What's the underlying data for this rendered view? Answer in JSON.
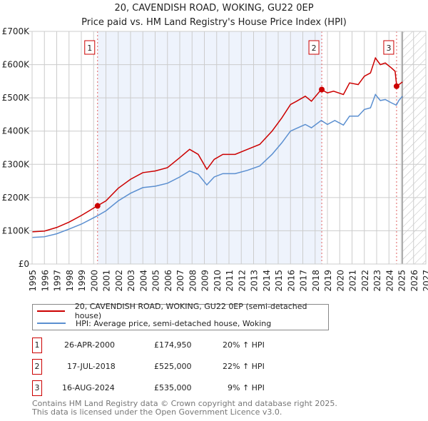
{
  "title": "20, CAVENDISH ROAD, WOKING, GU22 0EP",
  "subtitle": "Price paid vs. HM Land Registry's House Price Index (HPI)",
  "colors": {
    "property": "#cc0000",
    "hpi": "#5b8fd0",
    "shade": "#eef3fc"
  },
  "chart_data": {
    "type": "line",
    "xlim": [
      1995,
      2027
    ],
    "ylim": [
      0,
      700000
    ],
    "yticks": [
      {
        "v": 0,
        "label": "£0"
      },
      {
        "v": 100000,
        "label": "£100K"
      },
      {
        "v": 200000,
        "label": "£200K"
      },
      {
        "v": 300000,
        "label": "£300K"
      },
      {
        "v": 400000,
        "label": "£400K"
      },
      {
        "v": 500000,
        "label": "£500K"
      },
      {
        "v": 600000,
        "label": "£600K"
      },
      {
        "v": 700000,
        "label": "£700K"
      }
    ],
    "xticks": [
      "1995",
      "1996",
      "1997",
      "1998",
      "1999",
      "2000",
      "2001",
      "2002",
      "2003",
      "2004",
      "2005",
      "2006",
      "2007",
      "2008",
      "2009",
      "2010",
      "2011",
      "2012",
      "2013",
      "2014",
      "2015",
      "2016",
      "2017",
      "2018",
      "2019",
      "2020",
      "2021",
      "2022",
      "2023",
      "2024",
      "2025",
      "2026",
      "2027"
    ],
    "series": [
      {
        "name": "20, CAVENDISH ROAD, WOKING, GU22 0EP (semi-detached house)",
        "color": "#cc0000",
        "points": [
          [
            1995,
            97000
          ],
          [
            1996,
            99000
          ],
          [
            1997,
            110000
          ],
          [
            1998,
            126000
          ],
          [
            1999,
            146000
          ],
          [
            2000.3,
            175000
          ],
          [
            2001,
            190000
          ],
          [
            2002,
            228000
          ],
          [
            2003,
            255000
          ],
          [
            2004,
            275000
          ],
          [
            2005,
            280000
          ],
          [
            2006,
            290000
          ],
          [
            2007,
            320000
          ],
          [
            2007.8,
            345000
          ],
          [
            2008.5,
            330000
          ],
          [
            2009.2,
            285000
          ],
          [
            2009.8,
            315000
          ],
          [
            2010.5,
            330000
          ],
          [
            2011.5,
            330000
          ],
          [
            2012.5,
            345000
          ],
          [
            2013.5,
            360000
          ],
          [
            2014.5,
            400000
          ],
          [
            2015.3,
            440000
          ],
          [
            2016,
            480000
          ],
          [
            2016.5,
            490000
          ],
          [
            2017.2,
            505000
          ],
          [
            2017.7,
            490000
          ],
          [
            2018.5,
            525000
          ],
          [
            2019,
            515000
          ],
          [
            2019.5,
            520000
          ],
          [
            2020.3,
            510000
          ],
          [
            2020.8,
            545000
          ],
          [
            2021.5,
            540000
          ],
          [
            2022,
            565000
          ],
          [
            2022.5,
            575000
          ],
          [
            2022.9,
            620000
          ],
          [
            2023.3,
            600000
          ],
          [
            2023.7,
            605000
          ],
          [
            2024.2,
            590000
          ],
          [
            2024.5,
            580000
          ],
          [
            2024.63,
            535000
          ],
          [
            2025.1,
            548000
          ]
        ]
      },
      {
        "name": "HPI: Average price, semi-detached house, Woking",
        "color": "#5b8fd0",
        "points": [
          [
            1995,
            80000
          ],
          [
            1996,
            82000
          ],
          [
            1997,
            91000
          ],
          [
            1998,
            105000
          ],
          [
            1999,
            120000
          ],
          [
            2000.3,
            145000
          ],
          [
            2001,
            160000
          ],
          [
            2002,
            190000
          ],
          [
            2003,
            213000
          ],
          [
            2004,
            230000
          ],
          [
            2005,
            234000
          ],
          [
            2006,
            243000
          ],
          [
            2007,
            262000
          ],
          [
            2007.8,
            280000
          ],
          [
            2008.5,
            270000
          ],
          [
            2009.2,
            238000
          ],
          [
            2009.8,
            262000
          ],
          [
            2010.5,
            272000
          ],
          [
            2011.5,
            272000
          ],
          [
            2012.5,
            282000
          ],
          [
            2013.5,
            295000
          ],
          [
            2014.5,
            330000
          ],
          [
            2015.3,
            365000
          ],
          [
            2016,
            400000
          ],
          [
            2016.6,
            410000
          ],
          [
            2017.2,
            420000
          ],
          [
            2017.7,
            410000
          ],
          [
            2018.5,
            432000
          ],
          [
            2019,
            420000
          ],
          [
            2019.6,
            432000
          ],
          [
            2020.3,
            418000
          ],
          [
            2020.8,
            445000
          ],
          [
            2021.5,
            445000
          ],
          [
            2022,
            465000
          ],
          [
            2022.5,
            470000
          ],
          [
            2022.9,
            510000
          ],
          [
            2023.3,
            492000
          ],
          [
            2023.7,
            495000
          ],
          [
            2024.2,
            485000
          ],
          [
            2024.6,
            478000
          ],
          [
            2024.8,
            492000
          ],
          [
            2025.1,
            505000
          ]
        ]
      }
    ],
    "sales": [
      {
        "id": "1",
        "x": 2000.32,
        "y": 174950
      },
      {
        "id": "2",
        "x": 2018.54,
        "y": 525000
      },
      {
        "id": "3",
        "x": 2024.62,
        "y": 535000
      }
    ],
    "shaded_range": [
      2000.32,
      2018.54
    ],
    "hatched_range": [
      2025.1,
      2027
    ]
  },
  "legend": {
    "property": "20, CAVENDISH ROAD, WOKING, GU22 0EP (semi-detached house)",
    "hpi": "HPI: Average price, semi-detached house, Woking"
  },
  "transactions": [
    {
      "id": "1",
      "date": "26-APR-2000",
      "price": "£174,950",
      "hpi": "20% ↑ HPI"
    },
    {
      "id": "2",
      "date": "17-JUL-2018",
      "price": "£525,000",
      "hpi": "22% ↑ HPI"
    },
    {
      "id": "3",
      "date": "16-AUG-2024",
      "price": "£535,000",
      "hpi": "9% ↑ HPI"
    }
  ],
  "footer": [
    "Contains HM Land Registry data © Crown copyright and database right 2025.",
    "This data is licensed under the Open Government Licence v3.0."
  ]
}
